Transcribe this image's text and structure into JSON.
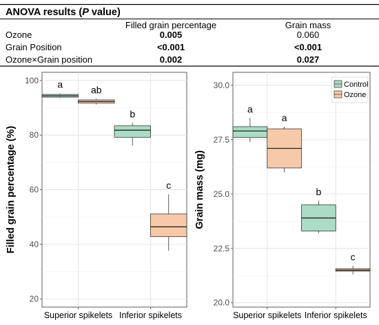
{
  "anova": {
    "title_prefix": "ANOVA results (",
    "title_italic": "P",
    "title_suffix": " value)",
    "col1": "Filled grain percentage",
    "col2": "Grain mass",
    "rows": [
      {
        "label": "Ozone",
        "v1": "0.005",
        "v1_bold": true,
        "v2": "0.060",
        "v2_bold": false
      },
      {
        "label": "Grain Position",
        "v1": "<0.001",
        "v1_bold": true,
        "v2": "<0.001",
        "v2_bold": true
      },
      {
        "label": "Ozone×Grain position",
        "v1": "0.002",
        "v1_bold": true,
        "v2": "0.027",
        "v2_bold": true
      }
    ]
  },
  "colors": {
    "control": "#abdcc4",
    "ozone": "#f7c9a9"
  },
  "chart_data": [
    {
      "type": "box",
      "ylabel": "Filled grain percentage (%)",
      "ylim": [
        17,
        103
      ],
      "yticks": [
        20,
        40,
        60,
        80,
        100
      ],
      "categories": [
        "Superior spikelets",
        "Inferior spikelets"
      ],
      "grid": true,
      "legend": null,
      "boxes": [
        {
          "category": "Superior spikelets",
          "series": "Control",
          "min": 93.6,
          "q1": 93.9,
          "median": 94.4,
          "q3": 94.9,
          "max": 95.3,
          "letter": "a"
        },
        {
          "category": "Superior spikelets",
          "series": "Ozone",
          "min": 91.2,
          "q1": 91.7,
          "median": 92.3,
          "q3": 92.9,
          "max": 93.3,
          "letter": "ab"
        },
        {
          "category": "Inferior spikelets",
          "series": "Control",
          "min": 76.2,
          "q1": 79.2,
          "median": 81.8,
          "q3": 83.4,
          "max": 84.5,
          "letter": "b"
        },
        {
          "category": "Inferior spikelets",
          "series": "Ozone",
          "min": 37.6,
          "q1": 42.8,
          "median": 46.4,
          "q3": 51.1,
          "max": 58.3,
          "letter": "c"
        }
      ]
    },
    {
      "type": "box",
      "ylabel": "Grain mass (mg)",
      "ylim": [
        19.8,
        30.6
      ],
      "yticks": [
        20.0,
        22.5,
        25.0,
        27.5,
        30.0
      ],
      "yticklabels": [
        "20.0",
        "22.5",
        "25.0",
        "27.5",
        "30.0"
      ],
      "categories": [
        "Superior spikelets",
        "Inferior spikelets"
      ],
      "grid": true,
      "legend": {
        "position": "top-right",
        "entries": [
          "Control",
          "Ozone"
        ]
      },
      "boxes": [
        {
          "category": "Superior spikelets",
          "series": "Control",
          "min": 27.4,
          "q1": 27.6,
          "median": 27.9,
          "q3": 28.1,
          "max": 28.5,
          "letter": "a"
        },
        {
          "category": "Superior spikelets",
          "series": "Ozone",
          "min": 26.0,
          "q1": 26.2,
          "median": 27.1,
          "q3": 28.0,
          "max": 28.1,
          "letter": "a"
        },
        {
          "category": "Inferior spikelets",
          "series": "Control",
          "min": 23.2,
          "q1": 23.3,
          "median": 23.9,
          "q3": 24.5,
          "max": 24.7,
          "letter": "b"
        },
        {
          "category": "Inferior spikelets",
          "series": "Ozone",
          "min": 21.3,
          "q1": 21.45,
          "median": 21.5,
          "q3": 21.57,
          "max": 21.7,
          "letter": "c"
        }
      ]
    }
  ]
}
